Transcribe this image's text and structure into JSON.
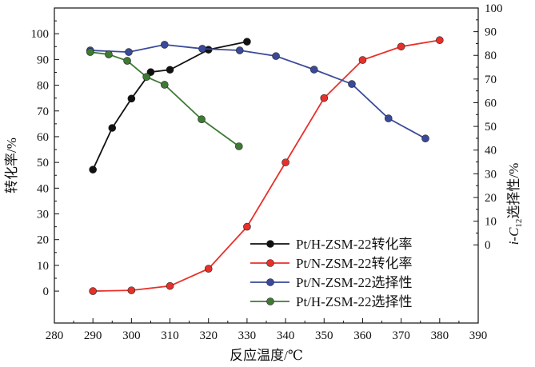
{
  "chart_data": {
    "type": "line",
    "xlabel": "反应温度/℃",
    "ylabel": "转化率/%",
    "ylabel_right": {
      "prefix": "i-C",
      "sub": "12",
      "suffix": "选择性/%"
    },
    "xlim": [
      280,
      390
    ],
    "ylim": [
      -12.4,
      110
    ],
    "ylim_right": [
      -33,
      100
    ],
    "xticks": [
      280,
      290,
      300,
      310,
      320,
      330,
      340,
      350,
      360,
      370,
      380,
      390
    ],
    "yticks": [
      0,
      10,
      20,
      30,
      40,
      50,
      60,
      70,
      80,
      90,
      100
    ],
    "yticks_right": [
      0,
      10,
      20,
      30,
      40,
      50,
      60,
      70,
      80,
      90,
      100
    ],
    "grid": false,
    "legend_position": "bottom-right",
    "series": [
      {
        "name": "Pt/H-ZSM-22转化率",
        "axis": "left",
        "color": "#111111",
        "x": [
          290,
          295,
          300,
          305,
          310,
          320,
          330
        ],
        "y": [
          47.2,
          63.4,
          74.8,
          85.1,
          86.0,
          93.8,
          96.9
        ]
      },
      {
        "name": "Pt/N-ZSM-22转化率",
        "axis": "left",
        "color": "#e8302a",
        "x": [
          290,
          300,
          310,
          320,
          330,
          340,
          350,
          360,
          370,
          380
        ],
        "y": [
          0,
          0.3,
          2,
          8.7,
          25,
          50,
          75,
          89.8,
          95,
          97.5
        ]
      },
      {
        "name": "Pt/N-ZSM-22选择性",
        "axis": "right",
        "color": "#3a4a9a",
        "x": [
          289.3,
          299.3,
          308.6,
          318.4,
          328.1,
          337.5,
          347.4,
          357.2,
          366.7,
          376.3
        ],
        "y": [
          82.1,
          81.4,
          84.5,
          82.8,
          82.1,
          79.7,
          74.0,
          67.9,
          53.4,
          44.9
        ]
      },
      {
        "name": "Pt/H-ZSM-22选择性",
        "axis": "right",
        "color": "#3e7a34",
        "x": [
          289.3,
          294.1,
          298.9,
          303.9,
          308.6,
          318.2,
          327.9
        ],
        "y": [
          81.4,
          80.4,
          77.7,
          70.9,
          67.6,
          53.0,
          41.6
        ]
      }
    ]
  }
}
